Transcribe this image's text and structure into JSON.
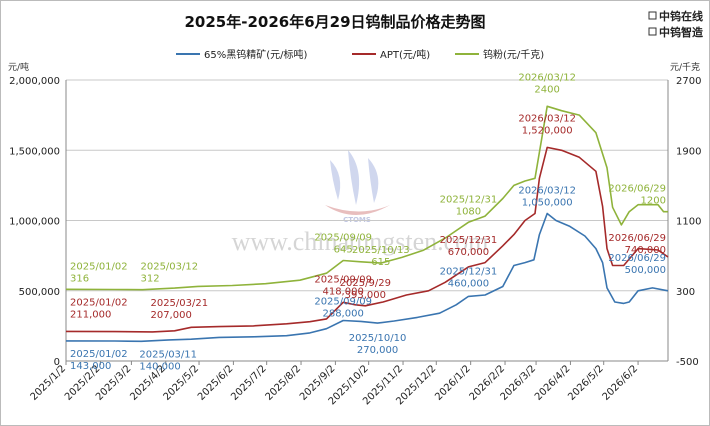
{
  "title": "2025年-2026年6月29日钨制品价格走势图",
  "brand": {
    "line1": "中钨在线",
    "line2": "中钨智造"
  },
  "watermark": {
    "text": "www.chinatungsten.com",
    "logo_text": "CTOMS"
  },
  "colors": {
    "concentrate": "#3a75b0",
    "apt": "#a52a2a",
    "powder": "#8fb33b",
    "grid": "#c8c8c8"
  },
  "chart_data": {
    "type": "line",
    "title": "2025年-2026年6月29日钨制品价格走势图",
    "y_left_unit": "元/吨",
    "y_right_unit": "元/千克",
    "ylim_left": [
      0,
      2000000
    ],
    "ylim_right": [
      -500,
      2700
    ],
    "y_left_ticks": [
      "0",
      "500,000",
      "1,000,000",
      "1,500,000",
      "2,000,000"
    ],
    "y_right_ticks": [
      "-500",
      "300",
      "1100",
      "1900",
      "2700"
    ],
    "x_ticks": [
      "2025/1/2",
      "2025/2/2",
      "2025/3/2",
      "2025/4/2",
      "2025/5/2",
      "2025/6/2",
      "2025/7/2",
      "2025/8/2",
      "2025/9/2",
      "2025/10/2",
      "2025/11/2",
      "2025/12/2",
      "2026/1/2",
      "2026/2/2",
      "2026/3/2",
      "2026/4/2",
      "2026/5/2",
      "2026/6/2"
    ],
    "xlim": [
      "2025-01-02",
      "2026-06-29"
    ],
    "legend_position": "top",
    "series": [
      {
        "name": "65%黑钨精矿(元/标吨)",
        "axis": "left",
        "points": [
          [
            "2025-01-02",
            143000
          ],
          [
            "2025-02-15",
            142000
          ],
          [
            "2025-03-11",
            140000
          ],
          [
            "2025-04-05",
            150000
          ],
          [
            "2025-04-25",
            155000
          ],
          [
            "2025-05-20",
            168000
          ],
          [
            "2025-06-20",
            172000
          ],
          [
            "2025-07-20",
            180000
          ],
          [
            "2025-08-10",
            200000
          ],
          [
            "2025-08-25",
            230000
          ],
          [
            "2025-09-09",
            288000
          ],
          [
            "2025-09-25",
            282000
          ],
          [
            "2025-10-10",
            270000
          ],
          [
            "2025-10-25",
            285000
          ],
          [
            "2025-11-15",
            310000
          ],
          [
            "2025-12-05",
            340000
          ],
          [
            "2025-12-20",
            400000
          ],
          [
            "2025-12-31",
            460000
          ],
          [
            "2026-01-15",
            470000
          ],
          [
            "2026-01-31",
            530000
          ],
          [
            "2026-02-10",
            680000
          ],
          [
            "2026-02-20",
            700000
          ],
          [
            "2026-02-28",
            720000
          ],
          [
            "2026-03-05",
            900000
          ],
          [
            "2026-03-12",
            1050000
          ],
          [
            "2026-03-20",
            1000000
          ],
          [
            "2026-04-01",
            960000
          ],
          [
            "2026-04-15",
            890000
          ],
          [
            "2026-04-25",
            800000
          ],
          [
            "2026-05-01",
            700000
          ],
          [
            "2026-05-05",
            520000
          ],
          [
            "2026-05-12",
            420000
          ],
          [
            "2026-05-20",
            410000
          ],
          [
            "2026-05-25",
            420000
          ],
          [
            "2026-06-02",
            500000
          ],
          [
            "2026-06-15",
            520000
          ],
          [
            "2026-06-29",
            500000
          ]
        ],
        "labels": [
          {
            "date": "2025-01-02",
            "value_text": "143,000",
            "date_text": "2025/01/02"
          },
          {
            "date": "2025-03-11",
            "value_text": "140,000",
            "date_text": "2025/03/11"
          },
          {
            "date": "2025-09-09",
            "value_text": "288,000",
            "date_text": "2025/09/09"
          },
          {
            "date": "2025-10-10",
            "value_text": "270,000",
            "date_text": "2025/10/10"
          },
          {
            "date": "2025-12-31",
            "value_text": "460,000",
            "date_text": "2025/12/31"
          },
          {
            "date": "2026-03-12",
            "value_text": "1,050,000",
            "date_text": "2026/03/12"
          },
          {
            "date": "2026-06-29",
            "value_text": "500,000",
            "date_text": "2026/06/29"
          }
        ]
      },
      {
        "name": "APT(元/吨)",
        "axis": "left",
        "points": [
          [
            "2025-01-02",
            211000
          ],
          [
            "2025-02-15",
            209000
          ],
          [
            "2025-03-21",
            207000
          ],
          [
            "2025-04-10",
            215000
          ],
          [
            "2025-04-25",
            240000
          ],
          [
            "2025-05-20",
            245000
          ],
          [
            "2025-06-20",
            250000
          ],
          [
            "2025-07-20",
            265000
          ],
          [
            "2025-08-10",
            280000
          ],
          [
            "2025-08-25",
            300000
          ],
          [
            "2025-09-09",
            418000
          ],
          [
            "2025-09-20",
            400000
          ],
          [
            "2025-09-29",
            393000
          ],
          [
            "2025-10-15",
            420000
          ],
          [
            "2025-11-05",
            470000
          ],
          [
            "2025-11-25",
            500000
          ],
          [
            "2025-12-10",
            560000
          ],
          [
            "2025-12-31",
            670000
          ],
          [
            "2026-01-15",
            700000
          ],
          [
            "2026-01-31",
            820000
          ],
          [
            "2026-02-10",
            900000
          ],
          [
            "2026-02-20",
            1000000
          ],
          [
            "2026-03-01",
            1050000
          ],
          [
            "2026-03-05",
            1300000
          ],
          [
            "2026-03-12",
            1520000
          ],
          [
            "2026-03-25",
            1500000
          ],
          [
            "2026-04-10",
            1450000
          ],
          [
            "2026-04-25",
            1350000
          ],
          [
            "2026-05-01",
            1100000
          ],
          [
            "2026-05-05",
            800000
          ],
          [
            "2026-05-10",
            680000
          ],
          [
            "2026-05-20",
            680000
          ],
          [
            "2026-06-02",
            800000
          ],
          [
            "2026-06-20",
            790000
          ],
          [
            "2026-06-29",
            740000
          ]
        ],
        "labels": [
          {
            "date": "2025-01-02",
            "value_text": "211,000",
            "date_text": "2025/01/02"
          },
          {
            "date": "2025-03-21",
            "value_text": "207,000",
            "date_text": "2025/03/21"
          },
          {
            "date": "2025-09-09",
            "value_text": "418,000",
            "date_text": "2025/09/09"
          },
          {
            "date": "2025-09-29",
            "value_text": "393,000",
            "date_text": "2025/9/29"
          },
          {
            "date": "2025-12-31",
            "value_text": "670,000",
            "date_text": "2025/12/31"
          },
          {
            "date": "2026-03-12",
            "value_text": "1,520,000",
            "date_text": "2026/03/12"
          },
          {
            "date": "2026-06-29",
            "value_text": "740,000",
            "date_text": "2026/06/29"
          }
        ]
      },
      {
        "name": "钨粉(元/千克)",
        "axis": "right",
        "points": [
          [
            "2025-01-02",
            316
          ],
          [
            "2025-02-15",
            314
          ],
          [
            "2025-03-12",
            312
          ],
          [
            "2025-04-10",
            330
          ],
          [
            "2025-05-01",
            350
          ],
          [
            "2025-06-01",
            360
          ],
          [
            "2025-07-01",
            380
          ],
          [
            "2025-08-01",
            420
          ],
          [
            "2025-08-25",
            500
          ],
          [
            "2025-09-09",
            645
          ],
          [
            "2025-09-25",
            630
          ],
          [
            "2025-10-13",
            615
          ],
          [
            "2025-11-01",
            680
          ],
          [
            "2025-11-20",
            760
          ],
          [
            "2025-12-10",
            900
          ],
          [
            "2025-12-31",
            1080
          ],
          [
            "2026-01-15",
            1150
          ],
          [
            "2026-01-31",
            1350
          ],
          [
            "2026-02-10",
            1500
          ],
          [
            "2026-02-20",
            1550
          ],
          [
            "2026-03-01",
            1580
          ],
          [
            "2026-03-12",
            2400
          ],
          [
            "2026-03-25",
            2350
          ],
          [
            "2026-04-10",
            2300
          ],
          [
            "2026-04-25",
            2100
          ],
          [
            "2026-05-05",
            1700
          ],
          [
            "2026-05-10",
            1250
          ],
          [
            "2026-05-18",
            1050
          ],
          [
            "2026-05-25",
            1200
          ],
          [
            "2026-06-02",
            1280
          ],
          [
            "2026-06-20",
            1280
          ],
          [
            "2026-06-25",
            1200
          ],
          [
            "2026-06-29",
            1200
          ]
        ],
        "labels": [
          {
            "date": "2025-01-02",
            "value_text": "316",
            "date_text": "2025/01/02"
          },
          {
            "date": "2025-03-12",
            "value_text": "312",
            "date_text": "2025/03/12"
          },
          {
            "date": "2025-09-09",
            "value_text": "645",
            "date_text": "2025/09/09"
          },
          {
            "date": "2025-10-13",
            "value_text": "615",
            "date_text": "2025/10/13"
          },
          {
            "date": "2025-12-31",
            "value_text": "1080",
            "date_text": "2025/12/31"
          },
          {
            "date": "2026-03-12",
            "value_text": "2400",
            "date_text": "2026/03/12"
          },
          {
            "date": "2026-06-29",
            "value_text": "1200",
            "date_text": "2026/06/29"
          }
        ]
      }
    ]
  }
}
